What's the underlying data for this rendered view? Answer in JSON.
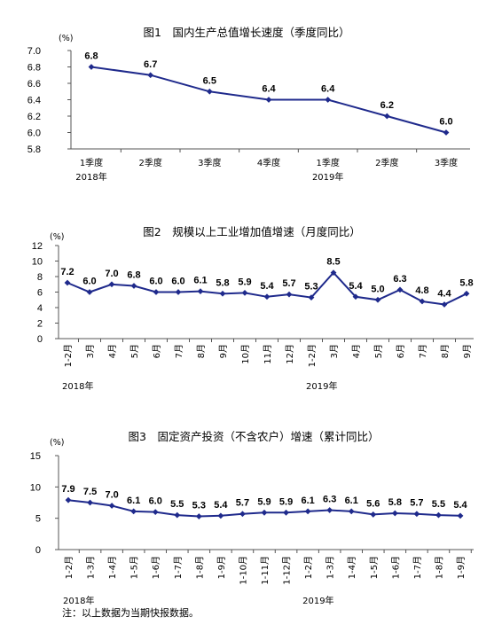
{
  "chart_data": [
    {
      "type": "line",
      "title": "图1　国内生产总值增长速度（季度同比）",
      "unit": "(%)",
      "ylim": [
        5.8,
        7.0
      ],
      "yticks": [
        "7.0",
        "6.8",
        "6.6",
        "6.4",
        "6.2",
        "6.0",
        "5.8"
      ],
      "categories": [
        "1季度",
        "2季度",
        "3季度",
        "4季度",
        "1季度",
        "2季度",
        "3季度"
      ],
      "year_labels": [
        {
          "index": 0,
          "text": "2018年"
        },
        {
          "index": 4,
          "text": "2019年"
        }
      ],
      "values": [
        6.8,
        6.7,
        6.5,
        6.4,
        6.4,
        6.2,
        6.0
      ],
      "labels": [
        "6.8",
        "6.7",
        "6.5",
        "6.4",
        "6.4",
        "6.2",
        "6.0"
      ],
      "color": "#1f2a8c",
      "grid": false
    },
    {
      "type": "line",
      "title": "图2　规模以上工业增加值增速（月度同比）",
      "unit": "(%)",
      "ylim": [
        0,
        12
      ],
      "yticks": [
        "12",
        "10",
        "8",
        "6",
        "4",
        "2",
        "0"
      ],
      "categories": [
        "1-2月",
        "3月",
        "4月",
        "5月",
        "6月",
        "7月",
        "8月",
        "9月",
        "10月",
        "11月",
        "12月",
        "1-2月",
        "3月",
        "4月",
        "5月",
        "6月",
        "7月",
        "8月",
        "9月"
      ],
      "year_labels": [
        {
          "index": 0,
          "text": "2018年"
        },
        {
          "index": 11,
          "text": "2019年"
        }
      ],
      "values": [
        7.2,
        6.0,
        7.0,
        6.8,
        6.0,
        6.0,
        6.1,
        5.8,
        5.9,
        5.4,
        5.7,
        5.3,
        8.5,
        5.4,
        5.0,
        6.3,
        4.8,
        4.4,
        5.8
      ],
      "labels": [
        "7.2",
        "6.0",
        "7.0",
        "6.8",
        "6.0",
        "6.0",
        "6.1",
        "5.8",
        "5.9",
        "5.4",
        "5.7",
        "5.3",
        "8.5",
        "5.4",
        "5.0",
        "6.3",
        "4.8",
        "4.4",
        "5.8"
      ],
      "color": "#1f2a8c",
      "grid": false
    },
    {
      "type": "line",
      "title": "图3　固定资产投资（不含农户）增速（累计同比）",
      "unit": "(%)",
      "ylim": [
        0,
        15
      ],
      "yticks": [
        "15",
        "10",
        "5",
        "0"
      ],
      "categories": [
        "1-2月",
        "1-3月",
        "1-4月",
        "1-5月",
        "1-6月",
        "1-7月",
        "1-8月",
        "1-9月",
        "1-10月",
        "1-11月",
        "1-12月",
        "1-2月",
        "1-3月",
        "1-4月",
        "1-5月",
        "1-6月",
        "1-7月",
        "1-8月",
        "1-9月"
      ],
      "year_labels": [
        {
          "index": 0,
          "text": "2018年"
        },
        {
          "index": 11,
          "text": "2019年"
        }
      ],
      "values": [
        7.9,
        7.5,
        7.0,
        6.1,
        6.0,
        5.5,
        5.3,
        5.4,
        5.7,
        5.9,
        5.9,
        6.1,
        6.3,
        6.1,
        5.6,
        5.8,
        5.7,
        5.5,
        5.4
      ],
      "labels": [
        "7.9",
        "7.5",
        "7.0",
        "6.1",
        "6.0",
        "5.5",
        "5.3",
        "5.4",
        "5.7",
        "5.9",
        "5.9",
        "6.1",
        "6.3",
        "6.1",
        "5.6",
        "5.8",
        "5.7",
        "5.5",
        "5.4"
      ],
      "color": "#1f2a8c",
      "grid": false
    }
  ],
  "note": "注：以上数据为当期快报数据。"
}
